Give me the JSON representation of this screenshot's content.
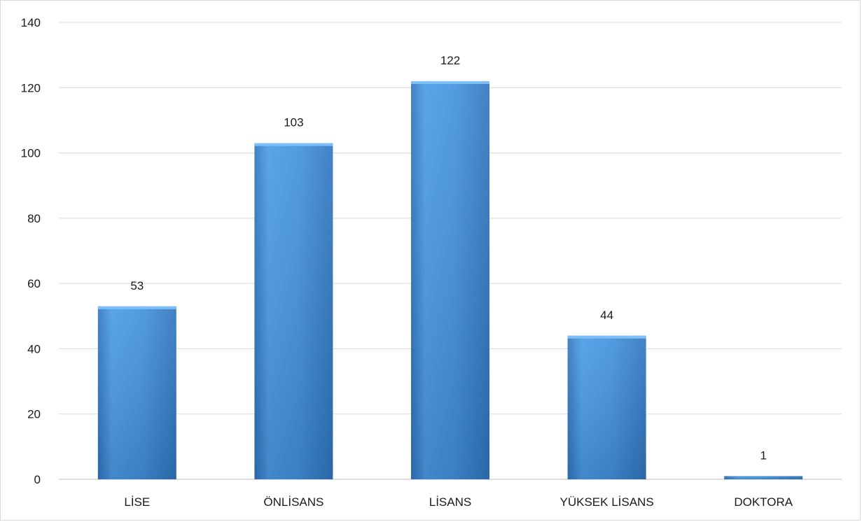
{
  "chart_data": {
    "type": "bar",
    "title": "",
    "xlabel": "",
    "ylabel": "",
    "categories": [
      "LİSE",
      "ÖNLİSANS",
      "LİSANS",
      "YÜKSEK LİSANS",
      "DOKTORA"
    ],
    "values": [
      53,
      103,
      122,
      44,
      1
    ],
    "data_labels": [
      "53",
      "103",
      "122",
      "44",
      "1"
    ],
    "ylim": [
      0,
      140
    ],
    "yticks": [
      0,
      20,
      40,
      60,
      80,
      100,
      120,
      140
    ],
    "ytick_labels": [
      "0",
      "20",
      "40",
      "60",
      "80",
      "100",
      "120",
      "140"
    ],
    "grid": true,
    "legend": "none",
    "colors": {
      "bar_light": "#5aa9f0",
      "bar_mid": "#4191dd",
      "bar_dark": "#2f74bd",
      "gridline": "#d9d9d9",
      "axis": "#bfbfbf"
    }
  }
}
